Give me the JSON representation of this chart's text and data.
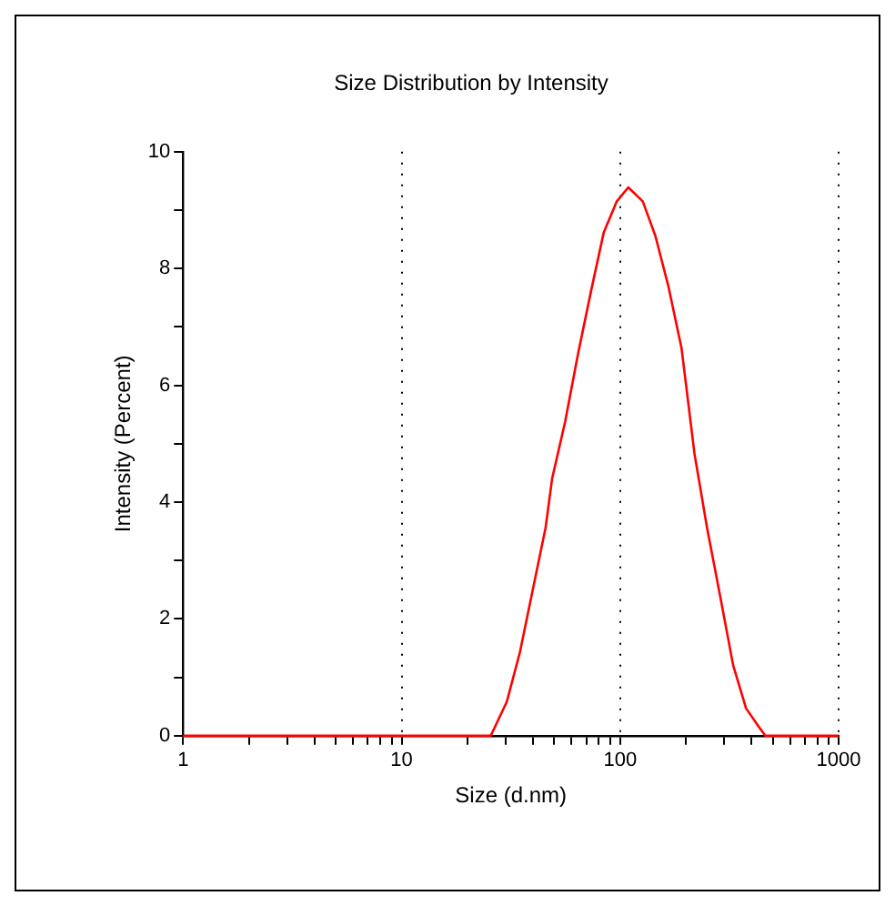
{
  "chart_data": {
    "type": "line",
    "title": "Size Distribution by Intensity",
    "xlabel": "Size (d.nm)",
    "ylabel": "Intensity (Percent)",
    "log": "x",
    "grid": "x",
    "legend": false,
    "marker": "none",
    "line_style": "solid",
    "xlim": [
      1,
      1000
    ],
    "ylim": [
      0,
      10
    ],
    "xticks": [
      1,
      {
        "value": 2,
        "label": null
      },
      {
        "value": 3,
        "label": null
      },
      {
        "value": 4,
        "label": null
      },
      {
        "value": 5,
        "label": null
      },
      {
        "value": 6,
        "label": null
      },
      {
        "value": 7,
        "label": null
      },
      {
        "value": 8,
        "label": null
      },
      {
        "value": 9,
        "label": null
      },
      10,
      {
        "value": 20,
        "label": null
      },
      {
        "value": 30,
        "label": null
      },
      {
        "value": 40,
        "label": null
      },
      {
        "value": 50,
        "label": null
      },
      {
        "value": 60,
        "label": null
      },
      {
        "value": 70,
        "label": null
      },
      {
        "value": 80,
        "label": null
      },
      {
        "value": 90,
        "label": null
      },
      100,
      {
        "value": 200,
        "label": null
      },
      {
        "value": 300,
        "label": null
      },
      {
        "value": 400,
        "label": null
      },
      {
        "value": 500,
        "label": null
      },
      {
        "value": 600,
        "label": null
      },
      {
        "value": 700,
        "label": null
      },
      {
        "value": 800,
        "label": null
      },
      {
        "value": 900,
        "label": null
      },
      1000
    ],
    "yticks": [
      0,
      {
        "value": 1,
        "label": null
      },
      2,
      {
        "value": 3,
        "label": null
      },
      4,
      {
        "value": 5,
        "label": null
      },
      6,
      {
        "value": 7,
        "label": null
      },
      8,
      {
        "value": 9,
        "label": null
      },
      10
    ],
    "series": [
      {
        "color": "#ff0000",
        "x": [
          1,
          25.6,
          30.3,
          34.8,
          39.8,
          45.6,
          48.9,
          56,
          64.2,
          73.5,
          84.2,
          96.6,
          109,
          127,
          145,
          166,
          191,
          219,
          250,
          287,
          329,
          377,
          432,
          462,
          1000
        ],
        "values": [
          0,
          0,
          0.58,
          1.43,
          2.49,
          3.56,
          4.41,
          5.37,
          6.54,
          7.6,
          8.62,
          9.15,
          9.39,
          9.15,
          8.56,
          7.71,
          6.64,
          4.83,
          3.56,
          2.39,
          1.21,
          0.47,
          0.15,
          0,
          0
        ]
      }
    ]
  }
}
